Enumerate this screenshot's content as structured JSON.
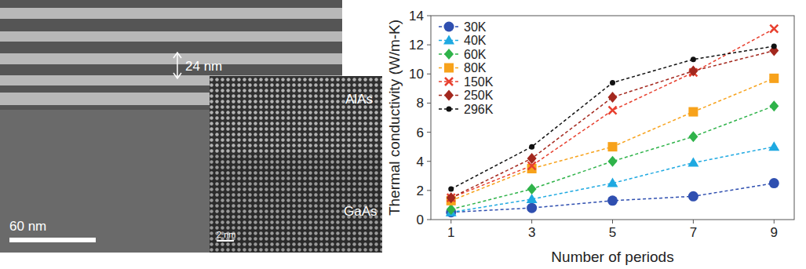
{
  "chart_data": {
    "type": "line",
    "x_label": "Number of periods",
    "y_label": "Thermal conductivity (W/m-K)",
    "x": [
      1,
      3,
      5,
      7,
      9
    ],
    "xlim": [
      0.5,
      9.5
    ],
    "xticks": [
      1,
      3,
      5,
      7,
      9
    ],
    "ylim": [
      0,
      14
    ],
    "yticks": [
      0,
      2,
      4,
      6,
      8,
      10,
      12,
      14
    ],
    "grid": false,
    "legend": "upper-left",
    "line_style": "dashed",
    "series": [
      {
        "name": "30K",
        "color": "#2f4fb0",
        "marker": "circle",
        "values": [
          0.5,
          0.8,
          1.3,
          1.6,
          2.5
        ]
      },
      {
        "name": "40K",
        "color": "#1fa9e1",
        "marker": "triangle",
        "values": [
          0.5,
          1.4,
          2.5,
          3.9,
          5.0
        ]
      },
      {
        "name": "60K",
        "color": "#2fb34a",
        "marker": "diamond",
        "values": [
          0.7,
          2.1,
          4.0,
          5.7,
          7.8
        ]
      },
      {
        "name": "80K",
        "color": "#f7a21b",
        "marker": "square",
        "values": [
          1.3,
          3.5,
          5.0,
          7.4,
          9.7
        ]
      },
      {
        "name": "150K",
        "color": "#e8402f",
        "marker": "x",
        "values": [
          1.5,
          3.7,
          7.5,
          10.1,
          13.1
        ]
      },
      {
        "name": "250K",
        "color": "#a3281e",
        "marker": "diamond",
        "values": [
          1.5,
          4.2,
          8.4,
          10.2,
          11.6
        ]
      },
      {
        "name": "296K",
        "color": "#111111",
        "marker": "dot",
        "values": [
          2.1,
          5.0,
          9.4,
          11.0,
          11.9
        ]
      }
    ]
  },
  "micrograph": {
    "period_label": "24 nm",
    "scale_bar": "60 nm",
    "inset_scale_bar": "2 nm",
    "layers": [
      "AlAs",
      "GaAs"
    ]
  }
}
